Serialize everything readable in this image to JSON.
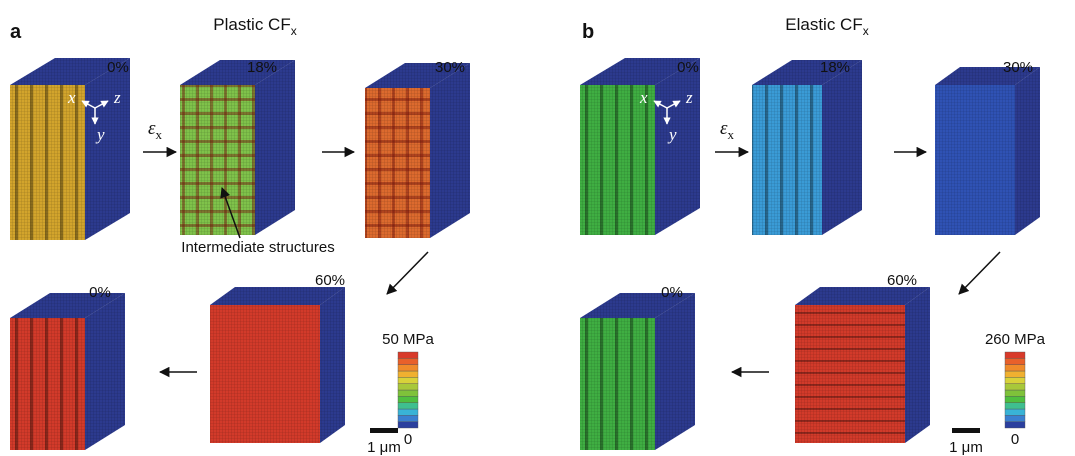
{
  "panels": [
    {
      "label": "a",
      "title": "Plastic CF",
      "title_subscript": "x",
      "strains": [
        "0%",
        "18%",
        "30%",
        "60%",
        "0%"
      ],
      "strain_symbol": "ε",
      "strain_subscript": "x",
      "axes": [
        "x",
        "y",
        "z"
      ],
      "annotation": "Intermediate structures",
      "colorbar_max": "50 MPa",
      "colorbar_min": "0",
      "scale_bar": "1 μm"
    },
    {
      "label": "b",
      "title": "Elastic CF",
      "title_subscript": "x",
      "strains": [
        "0%",
        "18%",
        "30%",
        "60%",
        "0%"
      ],
      "strain_symbol": "ε",
      "strain_subscript": "x",
      "axes": [
        "x",
        "y",
        "z"
      ],
      "colorbar_max": "260 MPa",
      "colorbar_min": "0",
      "scale_bar": "1 μm"
    }
  ]
}
